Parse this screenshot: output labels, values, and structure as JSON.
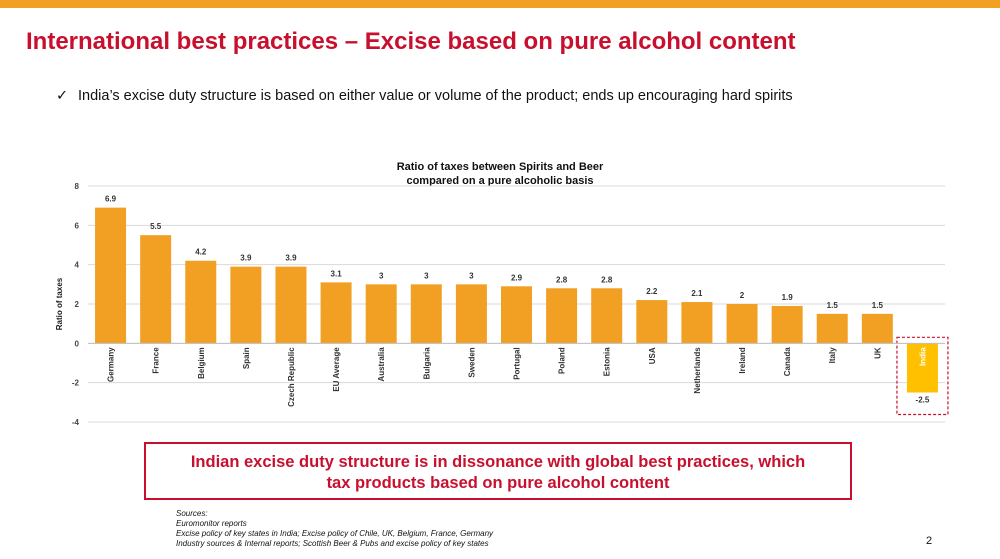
{
  "slide": {
    "title": "International best practices – Excise based on pure alcohol content",
    "bullet": "India’s excise duty structure is based on either value or volume of the product; ends up encouraging hard spirits",
    "callout_line1": "Indian excise duty structure is in dissonance with global best practices, which",
    "callout_line2": "tax products based on pure alcohol content",
    "sources": [
      "Sources:",
      "Euromonitor reports",
      "Excise policy of key states in India; Excise policy of Chile, UK, Belgium, France, Germany",
      "Industry sources & Internal reports; Scottish Beer & Pubs and excise policy of key states"
    ],
    "page_number": "2",
    "colors": {
      "accent_bar": "#f2a024",
      "title_red": "#c8102e",
      "bar_orange": "#f2a024",
      "india_bar": "#ffc000"
    }
  },
  "chart_data": {
    "type": "bar",
    "title_line1": "Ratio of taxes between Spirits and Beer",
    "title_line2": "compared on a pure alcoholic basis",
    "ylabel": "Ratio of taxes",
    "xlabel": "",
    "ylim": [
      -4,
      8
    ],
    "yticks": [
      -4,
      -2,
      0,
      2,
      4,
      6,
      8
    ],
    "grid": true,
    "categories": [
      "Germany",
      "France",
      "Belgium",
      "Spain",
      "Czech Republic",
      "EU Average",
      "Australia",
      "Bulgaria",
      "Sweden",
      "Portugal",
      "Poland",
      "Estonia",
      "USA",
      "Netherlands",
      "Ireland",
      "Canada",
      "Italy",
      "UK",
      "India"
    ],
    "values": [
      6.9,
      5.5,
      4.2,
      3.9,
      3.9,
      3.1,
      3,
      3,
      3,
      2.9,
      2.8,
      2.8,
      2.2,
      2.1,
      2,
      1.9,
      1.5,
      1.5,
      -2.5
    ],
    "value_labels": [
      "6.9",
      "5.5",
      "4.2",
      "3.9",
      "3.9",
      "3.1",
      "3",
      "3",
      "3",
      "2.9",
      "2.8",
      "2.8",
      "2.2",
      "2.1",
      "2",
      "1.9",
      "1.5",
      "1.5",
      "-2.5"
    ],
    "highlight_category": "India"
  }
}
